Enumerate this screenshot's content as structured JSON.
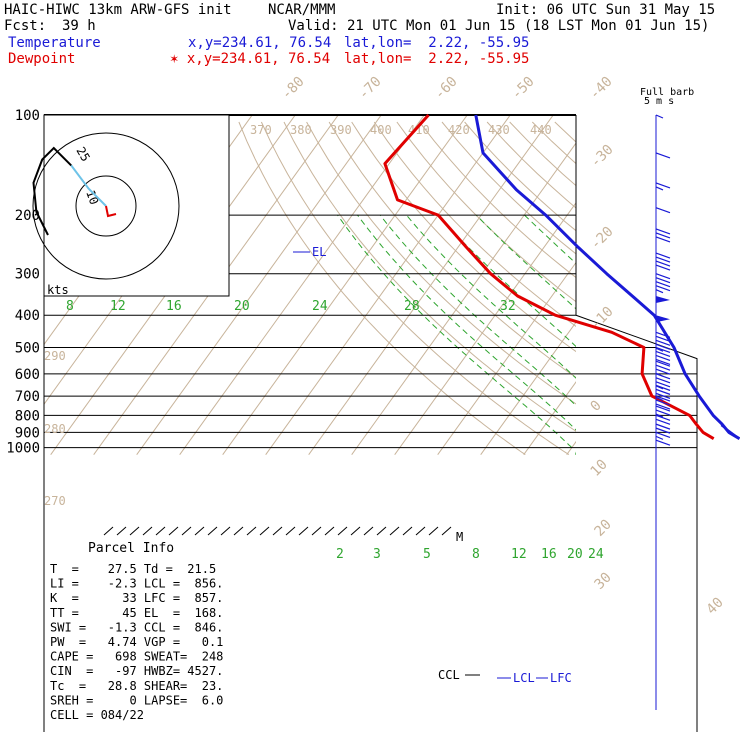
{
  "header": {
    "model": "HAIC-HIWC 13km ARW-GFS init",
    "source": "NCAR/MMM",
    "init": "Init: 06 UTC Sun 31 May 15",
    "fcst_label": "Fcst:",
    "fcst_value": "39 h",
    "valid": "Valid: 21 UTC Mon 01 Jun 15 (18 LST Mon 01 Jun 15)",
    "temperature_label": "Temperature",
    "temperature_loc": "x,y=234.61, 76.54",
    "temperature_latlon": "lat,lon=  2.22, -55.95",
    "dewpoint_label": "Dewpoint",
    "dewpoint_loc": "✶ x,y=234.61, 76.54",
    "dewpoint_latlon": "lat,lon=  2.22, -55.95",
    "barb_legend_1": "Full barb",
    "barb_legend_2": "5 m s",
    "hodo_unit": "kts",
    "hodo_ring_inner": "10",
    "hodo_ring_outer": "25"
  },
  "parcel_info": {
    "title": "Parcel Info",
    "rows": [
      "T  =    27.5 Td =  21.5",
      "LI =    -2.3 LCL =  856.",
      "K  =      33 LFC =  857.",
      "TT =      45 EL  =  168.",
      "SWI =   -1.3 CCL =  846.",
      "PW  =   4.74 VGP =   0.1",
      "CAPE =   698 SWEAT=  248",
      "CIN  =   -97 HWBZ= 4527.",
      "Tc  =   28.8 SHEAR=  23.",
      "SREH =     0 LAPSE=  6.0",
      "CELL = 084/22"
    ]
  },
  "colors": {
    "temperature": "#1a1ad6",
    "dewpoint": "#e00000",
    "isotherm": "#c8b49b",
    "mixing_ratio": "#2fa52f",
    "text": "#000000"
  },
  "chart_data": {
    "type": "line",
    "subtype": "skew-T log-P",
    "y_axis": "pressure (hPa)",
    "pressure_ticks": [
      100,
      200,
      300,
      400,
      500,
      600,
      700,
      800,
      900,
      1000
    ],
    "isotherm_labels": [
      -80,
      -70,
      -60,
      -50,
      -40,
      -30,
      -20,
      -10,
      0,
      10,
      20,
      30,
      40
    ],
    "theta_labels": [
      370,
      380,
      390,
      400,
      410,
      420,
      430,
      440,
      290,
      280,
      270
    ],
    "mixing_ratio_labels_200": [
      8,
      12,
      16,
      20,
      24,
      28,
      32
    ],
    "mixing_ratio_labels_500": [
      2,
      3,
      5,
      8,
      12,
      16,
      20,
      24
    ],
    "annotations": {
      "el": "EL",
      "ccl": "CCL",
      "lcl": "LCL",
      "lfc": "LFC",
      "m": "M"
    },
    "series": [
      {
        "name": "Temperature",
        "values": [
          {
            "p": 100,
            "t": -88
          },
          {
            "p": 130,
            "t": -80
          },
          {
            "p": 168,
            "t": -66
          },
          {
            "p": 200,
            "t": -55
          },
          {
            "p": 250,
            "t": -42
          },
          {
            "p": 300,
            "t": -31
          },
          {
            "p": 400,
            "t": -13
          },
          {
            "p": 500,
            "t": -3
          },
          {
            "p": 600,
            "t": 4
          },
          {
            "p": 700,
            "t": 11
          },
          {
            "p": 800,
            "t": 17.5
          },
          {
            "p": 850,
            "t": 21
          },
          {
            "p": 900,
            "t": 24
          },
          {
            "p": 940,
            "t": 27.5
          }
        ]
      },
      {
        "name": "Dewpoint",
        "values": [
          {
            "p": 100,
            "t": -99
          },
          {
            "p": 140,
            "t": -101
          },
          {
            "p": 180,
            "t": -92
          },
          {
            "p": 200,
            "t": -80
          },
          {
            "p": 250,
            "t": -68
          },
          {
            "p": 300,
            "t": -58
          },
          {
            "p": 350,
            "t": -48
          },
          {
            "p": 400,
            "t": -36
          },
          {
            "p": 450,
            "t": -20
          },
          {
            "p": 500,
            "t": -10
          },
          {
            "p": 600,
            "t": -6
          },
          {
            "p": 700,
            "t": 0
          },
          {
            "p": 800,
            "t": 12
          },
          {
            "p": 850,
            "t": 15
          },
          {
            "p": 900,
            "t": 18
          },
          {
            "p": 940,
            "t": 21.5
          }
        ]
      }
    ],
    "wind_barbs": [
      {
        "p": 100,
        "spd": 5
      },
      {
        "p": 130,
        "spd": 10
      },
      {
        "p": 160,
        "spd": 15
      },
      {
        "p": 190,
        "spd": 10
      },
      {
        "p": 220,
        "spd": 30
      },
      {
        "p": 260,
        "spd": 40
      },
      {
        "p": 300,
        "spd": 45
      },
      {
        "p": 350,
        "spd": 50
      },
      {
        "p": 400,
        "spd": 50
      },
      {
        "p": 450,
        "spd": 45
      },
      {
        "p": 500,
        "spd": 40
      },
      {
        "p": 550,
        "spd": 35
      },
      {
        "p": 600,
        "spd": 35
      },
      {
        "p": 650,
        "spd": 35
      },
      {
        "p": 700,
        "spd": 30
      },
      {
        "p": 750,
        "spd": 25
      },
      {
        "p": 800,
        "spd": 20
      },
      {
        "p": 850,
        "spd": 20
      },
      {
        "p": 900,
        "spd": 15
      },
      {
        "p": 950,
        "spd": 10
      }
    ],
    "hodograph": [
      [
        0,
        0
      ],
      [
        -6,
        6
      ],
      [
        -12,
        14
      ],
      [
        -18,
        20
      ],
      [
        -22,
        16
      ],
      [
        -25,
        8
      ],
      [
        -24,
        -2
      ],
      [
        -20,
        -10
      ]
    ]
  }
}
